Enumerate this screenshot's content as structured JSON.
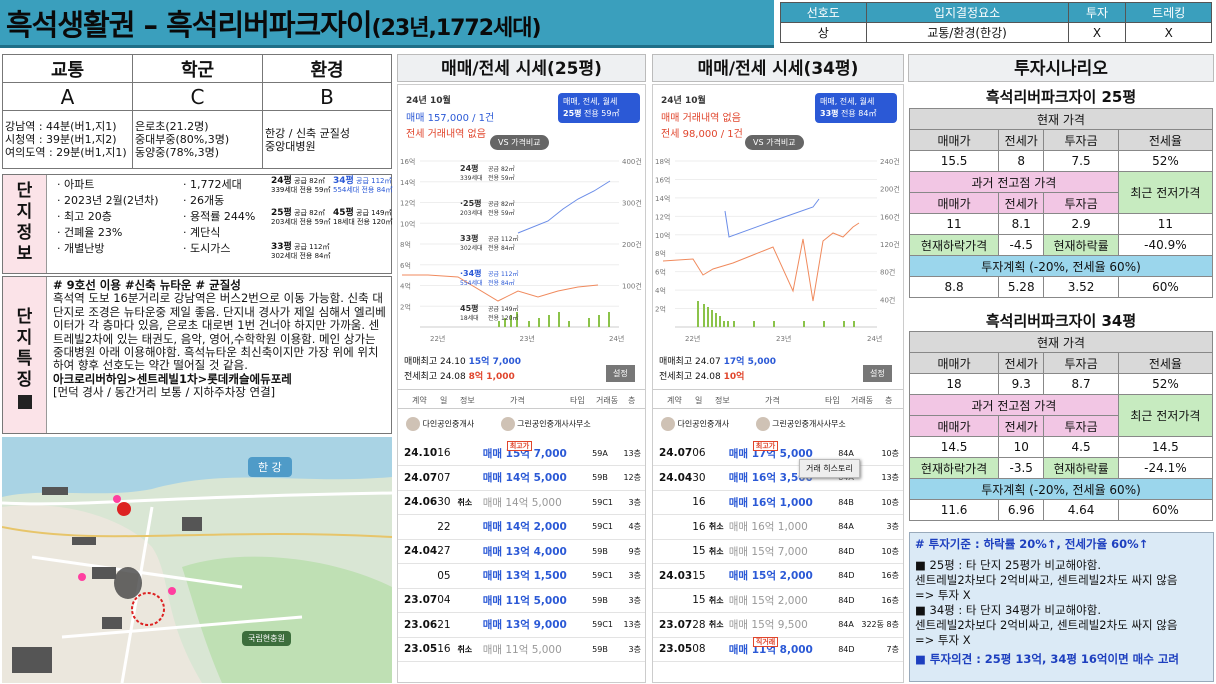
{
  "header": {
    "title": "흑석생활권 – 흑석리버파크자이",
    "sub": "(23년,1772세대)"
  },
  "summary": {
    "heads": [
      "선호도",
      "입지결정요소",
      "투자",
      "트레킹"
    ],
    "vals": [
      "상",
      "교통/환경(한강)",
      "X",
      "X"
    ]
  },
  "grade": {
    "heads": [
      "교통",
      "학군",
      "환경"
    ],
    "grades": [
      "A",
      "C",
      "B"
    ],
    "traffic": [
      "강남역 : 44분(버1,지1)",
      "시청역 : 39분(버1,지2)",
      "여의도역 : 29분(버1,지1)"
    ],
    "school": [
      "은로초(21.2명)",
      "중대부중(80%,3명)",
      "동양중(78%,3명)"
    ],
    "env": [
      "한강 / 신축 균질성",
      "중앙대병원"
    ]
  },
  "danji": {
    "label": [
      "단",
      "지",
      "정",
      "보"
    ],
    "col1": [
      "아파트",
      "2023년 2월(2년차)",
      "최고 20층",
      "건폐율 23%",
      "개별난방"
    ],
    "col2": [
      "1,772세대",
      "26개동",
      "용적률 244%",
      "계단식",
      "도시가스"
    ],
    "types": [
      {
        "p": "24평",
        "a": "공급 82㎡",
        "b": "339세대",
        "c": "전용 59㎡"
      },
      {
        "p": "34평",
        "a": "공급 112㎡",
        "b": "554세대",
        "c": "전용 84㎡"
      },
      {
        "p": "25평",
        "a": "공급 82㎡",
        "b": "203세대",
        "c": "전용 59㎡"
      },
      {
        "p": "45평",
        "a": "공급 149㎡",
        "b": "18세대",
        "c": "전용 120㎡"
      },
      {
        "p": "33평",
        "a": "공급 112㎡",
        "b": "302세대",
        "c": "전용 84㎡"
      }
    ]
  },
  "tukjing": {
    "label": [
      "단",
      "지",
      "특",
      "징"
    ],
    "tags": "# 9호선 이용 #신축 뉴타운 # 균질성",
    "body": "흑석역 도보 16분거리로 강남역은 버스2번으로 이동 가능함. 신축 대단지로 조경은 뉴타운중 제일 좋음. 단지내 경사가 제일 심해서 엘리베이터가 각 층마다 있음, 은로초 대로변 1번 건너야 하지만 가까움. 센트레빌2차에 있는 태권도, 음악, 영어,수학학원 이용함. 메인 상가는 중대병원 아래 이용해야함. 흑석뉴타운 최신축이지만 가장 위에 위치하여 향후 선호도는 약간 떨어질 것 같음.",
    "rank": "아크로리버하임>센트레빌1차>롯데캐슬에듀포레",
    "note": "[먼덕 경사 / 동간거리 보통 / 지하주차장 연결]"
  },
  "map": {
    "river": "한 강",
    "park": "국립현충원"
  },
  "p25": {
    "title": "매매/전세 시세(25평)",
    "month": "24년 10월",
    "sale": "매매 157,000 / 1건",
    "rent": "전세 거래내역 없음",
    "sel1": "매매, 전세, 월세",
    "sel2": "25평",
    "sel3": "전용 59㎡",
    "vs": "VS 가격비교",
    "yl": [
      "16억",
      "14억",
      "12억",
      "10억",
      "8억",
      "6억",
      "4억",
      "2억"
    ],
    "yr": [
      "400건",
      "300건",
      "200건",
      "100건"
    ],
    "xl": [
      "22년",
      "23년",
      "24년"
    ],
    "types": [
      [
        "24평",
        "공급 82㎡",
        "339세대",
        "전용 59㎡"
      ],
      [
        "·25평",
        "공급 82㎡",
        "203세대",
        "전용 59㎡"
      ],
      [
        "33평",
        "공급 112㎡",
        "302세대",
        "전용 84㎡"
      ],
      [
        "·34평",
        "공급 112㎡",
        "554세대",
        "전용 84㎡"
      ],
      [
        "45평",
        "공급 149㎡",
        "18세대",
        "전용 120㎡"
      ]
    ],
    "max1": "매매최고  24.10",
    "max1v": "15억 7,000",
    "max2": "전세최고  24.08",
    "max2v": "8억 1,000",
    "set": "설정",
    "th": [
      "계약",
      "일",
      "정보",
      "가격",
      "타입",
      "거래동",
      "층"
    ],
    "ag1": "다인공인중개사",
    "ag2": "그린공인중개사사무소",
    "rows": [
      [
        "24.10",
        "16",
        "",
        "매매 15억 7,000",
        "59A",
        "13층",
        "최고가"
      ],
      [
        "24.07",
        "07",
        "",
        "매매 14억 5,000",
        "59B",
        "12층",
        ""
      ],
      [
        "24.06",
        "30",
        "취소",
        "매매 14억 5,000",
        "59C1",
        "3층",
        ""
      ],
      [
        "",
        "22",
        "",
        "매매 14억 2,000",
        "59C1",
        "4층",
        ""
      ],
      [
        "24.04",
        "27",
        "",
        "매매 13억 4,000",
        "59B",
        "9층",
        ""
      ],
      [
        "",
        "05",
        "",
        "매매 13억 1,500",
        "59C1",
        "3층",
        ""
      ],
      [
        "23.07",
        "04",
        "",
        "매매 11억 5,000",
        "59B",
        "3층",
        ""
      ],
      [
        "23.06",
        "21",
        "",
        "매매 13억 9,000",
        "59C1",
        "13층",
        ""
      ],
      [
        "23.05",
        "16",
        "취소",
        "매매 11억 5,000",
        "59B",
        "3층",
        ""
      ]
    ]
  },
  "p34": {
    "title": "매매/전세 시세(34평)",
    "month": "24년 10월",
    "sale": "매매 거래내역 없음",
    "rent": "전세 98,000 / 1건",
    "sel1": "매매, 전세, 월세",
    "sel2": "33평",
    "sel3": "전용 84㎡",
    "vs": "VS 가격비교",
    "yl": [
      "18억",
      "16억",
      "14억",
      "12억",
      "10억",
      "8억",
      "6억",
      "4억",
      "2억"
    ],
    "yr": [
      "240건",
      "200건",
      "160건",
      "120건",
      "80건",
      "40건"
    ],
    "xl": [
      "22년",
      "23년",
      "24년"
    ],
    "max1": "매매최고  24.07",
    "max1v": "17억 5,000",
    "max2": "전세최고  24.08",
    "max2v": "10억",
    "set": "설정",
    "th": [
      "계약",
      "일",
      "정보",
      "가격",
      "타입",
      "거래동",
      "층"
    ],
    "ag1": "다인공인중개사",
    "ag2": "그린공인중개사사무소",
    "hist": "거래 히스토리",
    "rows": [
      [
        "24.07",
        "06",
        "",
        "매매 17억 5,000",
        "84A",
        "10층",
        "최고가"
      ],
      [
        "24.04",
        "30",
        "",
        "매매 16억 3,500",
        "84A",
        "13층",
        ""
      ],
      [
        "",
        "16",
        "",
        "매매 16억 1,000",
        "84B",
        "10층",
        ""
      ],
      [
        "",
        "16",
        "취소",
        "매매 16억 1,000",
        "84A",
        "3층",
        ""
      ],
      [
        "",
        "15",
        "취소",
        "매매 15억 7,000",
        "84D",
        "10층",
        ""
      ],
      [
        "24.03",
        "15",
        "",
        "매매 15억 2,000",
        "84D",
        "16층",
        ""
      ],
      [
        "",
        "15",
        "취소",
        "매매 15억 2,000",
        "84D",
        "16층",
        ""
      ],
      [
        "23.07",
        "28",
        "취소",
        "매매 15억 9,500",
        "84A",
        "322동 8층",
        ""
      ],
      [
        "23.05",
        "08",
        "",
        "매매 11억 8,000",
        "84D",
        "7층",
        "직거래"
      ]
    ]
  },
  "invest": {
    "title": "투자시나리오",
    "s25": {
      "name": "흑석리버파크자이 25평",
      "cur": "현재 가격",
      "h": [
        "매매가",
        "전세가",
        "투자금",
        "전세율"
      ],
      "v": [
        "15.5",
        "8",
        "7.5",
        "52%"
      ],
      "past": "과거 전고점 가격",
      "recent": "최근 전저가격",
      "ph": [
        "매매가",
        "전세가",
        "투자금"
      ],
      "pv": [
        "11",
        "8.1",
        "2.9",
        "11"
      ],
      "drop": [
        "현재하락가격",
        "-4.5",
        "현재하락률",
        "-40.9%"
      ],
      "plan": "투자계획 (-20%, 전세율 60%)",
      "planv": [
        "8.8",
        "5.28",
        "3.52",
        "60%"
      ]
    },
    "s34": {
      "name": "흑석리버파크자이 34평",
      "cur": "현재 가격",
      "h": [
        "매매가",
        "전세가",
        "투자금",
        "전세율"
      ],
      "v": [
        "18",
        "9.3",
        "8.7",
        "52%"
      ],
      "past": "과거 전고점 가격",
      "recent": "최근 전저가격",
      "ph": [
        "매매가",
        "전세가",
        "투자금"
      ],
      "pv": [
        "14.5",
        "10",
        "4.5",
        "14.5"
      ],
      "drop": [
        "현재하락가격",
        "-3.5",
        "현재하락률",
        "-24.1%"
      ],
      "plan": "투자계획 (-20%, 전세율 60%)",
      "planv": [
        "11.6",
        "6.96",
        "4.64",
        "60%"
      ]
    },
    "note": {
      "std": "# 투자기준 : 하락률 20%↑, 전세가율 60%↑",
      "a1": "■ 25평 : 타 단지 25평가 비교해야함.",
      "a2": "센트레빌2차보다 2억비싸고, 센트레빌2차도 싸지 않음",
      "a3": "=> 투자 X",
      "b1": "■ 34평 : 타 단지 34평가 비교해야함.",
      "b2": "센트레빌2차보다 2억비싸고, 센트레빌2차도 싸지 않음",
      "b3": "=> 투자 X",
      "op": "■ 투자의견 : 25평 13억, 34평 16억이면 매수 고려"
    }
  },
  "colors": {
    "header": "#3a9fbd",
    "pink": "#f2c6e4",
    "green": "#c7ebc0",
    "sky": "#9bd6ec",
    "blue": "#2b59d6",
    "red": "#e0452c"
  }
}
